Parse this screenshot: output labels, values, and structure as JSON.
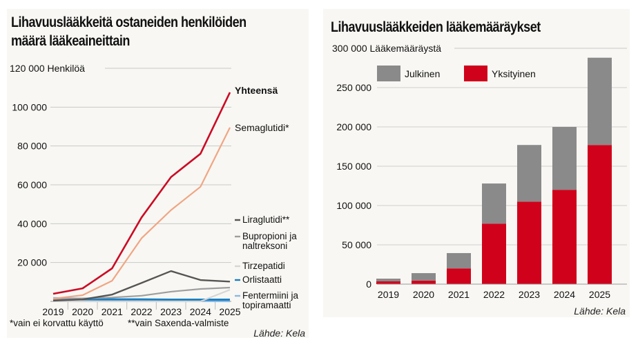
{
  "chart_data": [
    {
      "type": "line",
      "title": "Lihavuuslääkkeitä ostaneiden henkilöiden määrä lääkeaineittain",
      "title_lines": [
        "Lihavuuslääkkeitä ostaneiden henkilöiden",
        "määrä lääkeaineittain"
      ],
      "ylabel": "Henkilöä",
      "xlabel": "",
      "ylim": [
        0,
        120000
      ],
      "yticks": [
        0,
        20000,
        40000,
        60000,
        80000,
        100000,
        120000
      ],
      "ytick_labels": [
        "",
        "20 000",
        "40 000",
        "60 000",
        "80 000",
        "100 000",
        "120 000 Henkilöä"
      ],
      "grid": true,
      "x": [
        "2019",
        "2020",
        "2021",
        "2022",
        "2023",
        "2024",
        "2025"
      ],
      "series": [
        {
          "name": "Yhteensä",
          "color": "#cc0a24",
          "label_bold": true,
          "values": [
            3900,
            6700,
            17000,
            43200,
            64000,
            76000,
            107600
          ]
        },
        {
          "name": "Semaglutidi*",
          "color": "#f0a583",
          "values": [
            1400,
            3200,
            10600,
            32500,
            47000,
            59000,
            89500
          ]
        },
        {
          "name": "Liraglutidi**",
          "color": "#555555",
          "values": [
            400,
            1000,
            3500,
            9500,
            15600,
            11000,
            10200
          ]
        },
        {
          "name": "Bupropioni ja naltreksoni",
          "color": "#9e9e9e",
          "values": [
            1000,
            1500,
            2000,
            2900,
            5000,
            6400,
            7100
          ]
        },
        {
          "name": "Tirzepatidi",
          "color": "#d6d6d6",
          "values": [
            0,
            0,
            0,
            0,
            0,
            0,
            6000
          ]
        },
        {
          "name": "Orlistaatti",
          "color": "#1a7fc2",
          "values": [
            1000,
            1000,
            1000,
            1000,
            900,
            900,
            900
          ]
        },
        {
          "name": "Fentermiini ja topiramaatti",
          "color": "#8cb8e2",
          "values": [
            1500,
            1200,
            900,
            700,
            500,
            400,
            300
          ]
        }
      ],
      "legend": [
        {
          "text": "Yhteensä",
          "marker": false
        },
        {
          "text": "Semaglutidi*",
          "marker": false
        },
        {
          "text": "Liraglutidi**",
          "marker": true
        },
        {
          "text": "Bupropioni ja",
          "text2": "naltreksoni",
          "marker": true
        },
        {
          "text": "Tirzepatidi",
          "marker": true
        },
        {
          "text": "Orlistaatti",
          "marker": true
        },
        {
          "text": "Fentermiini ja",
          "text2": "topiramaatti",
          "marker": true
        }
      ],
      "legend_placement": "right",
      "footnotes": [
        "*vain ei korvattu käyttö",
        "**vain Saxenda-valmiste"
      ],
      "source": "Lähde: Kela"
    },
    {
      "type": "bar",
      "stacked": true,
      "title": "Lihavuuslääkkeiden lääkemääräykset",
      "ylabel": "Lääkemääräystä",
      "xlabel": "",
      "ylim": [
        0,
        300000
      ],
      "yticks": [
        0,
        50000,
        100000,
        150000,
        200000,
        250000,
        300000
      ],
      "ytick_labels": [
        "0",
        "50 000",
        "100 000",
        "150 000",
        "200 000",
        "250 000",
        "300 000 Lääkemääräystä"
      ],
      "grid": true,
      "categories": [
        "2019",
        "2020",
        "2021",
        "2022",
        "2023",
        "2024",
        "2025"
      ],
      "series": [
        {
          "name": "Yksityinen",
          "color": "#d0021b",
          "values": [
            3500,
            4500,
            20000,
            77000,
            105000,
            120000,
            177000
          ]
        },
        {
          "name": "Julkinen",
          "color": "#8a8a8a",
          "values": [
            3500,
            9500,
            19500,
            51000,
            72000,
            80000,
            111000
          ]
        }
      ],
      "legend": [
        {
          "text": "Julkinen",
          "color": "#8a8a8a"
        },
        {
          "text": "Yksityinen",
          "color": "#d0021b"
        }
      ],
      "legend_placement": "top-left",
      "source": "Lähde: Kela"
    }
  ]
}
